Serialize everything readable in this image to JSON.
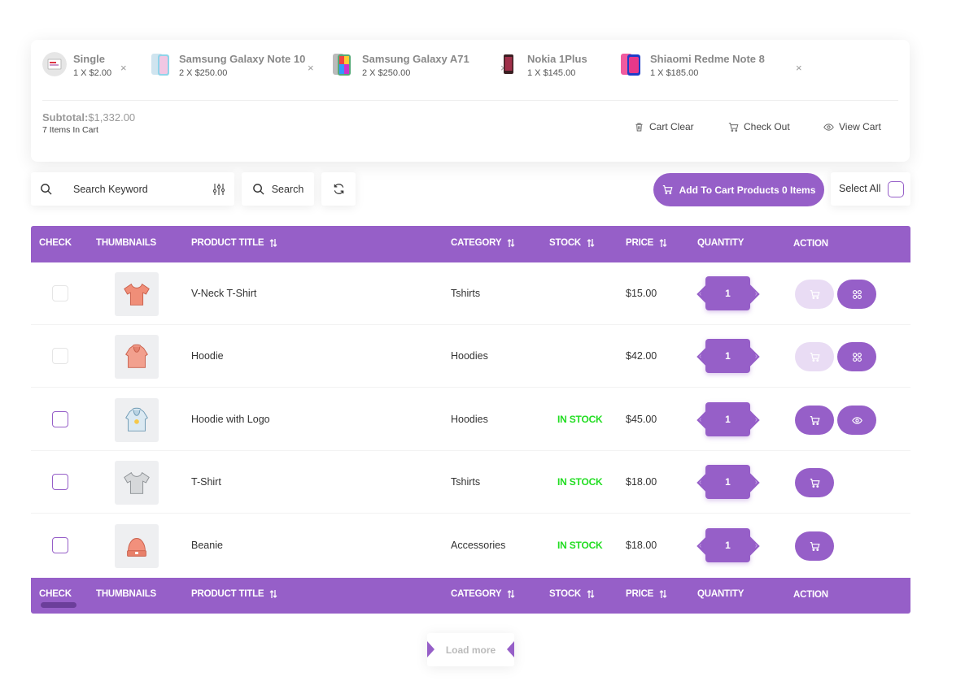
{
  "mini_cart": {
    "items": [
      {
        "name": "Single",
        "qty": "1 X $2.00",
        "thumb_icon": "single-product-thumb"
      },
      {
        "name": "Samsung Galaxy Note 10",
        "qty": "2 X $250.00",
        "thumb_icon": "phone-thumb-note10"
      },
      {
        "name": "Samsung Galaxy A71",
        "qty": "2 X $250.00",
        "thumb_icon": "phone-thumb-a71"
      },
      {
        "name": "Nokia 1Plus",
        "qty": "1 X $145.00",
        "thumb_icon": "phone-thumb-nokia"
      },
      {
        "name": "Shiaomi Redme Note 8",
        "qty": "1 X $185.00",
        "thumb_icon": "phone-thumb-redmi"
      }
    ],
    "remove_symbol": "×",
    "subtotal_label": "Subtotal:",
    "subtotal_value": "$1,332.00",
    "items_count": "7 Items In Cart",
    "actions": {
      "clear": "Cart Clear",
      "checkout": "Check Out",
      "view": "View Cart"
    }
  },
  "toolbar": {
    "search_placeholder": "Search Keyword",
    "search_button": "Search",
    "add_to_cart_button": "Add To Cart Products 0 Items",
    "select_all": "Select All"
  },
  "table": {
    "columns": [
      "CHECK",
      "THUMBNAILS",
      "PRODUCT TITLE",
      "CATEGORY",
      "STOCK",
      "PRICE",
      "QUANTITY",
      "ACTION"
    ],
    "rows": [
      {
        "title": "V-Neck T-Shirt",
        "category": "Tshirts",
        "stock": "",
        "price": "$15.00",
        "qty": "1",
        "thumb_icon": "tshirt-icon"
      },
      {
        "title": "Hoodie",
        "category": "Hoodies",
        "stock": "",
        "price": "$42.00",
        "qty": "1",
        "thumb_icon": "hoodie-icon"
      },
      {
        "title": "Hoodie with Logo",
        "category": "Hoodies",
        "stock": "IN STOCK",
        "price": "$45.00",
        "qty": "1",
        "thumb_icon": "hoodie-logo-icon"
      },
      {
        "title": "T-Shirt",
        "category": "Tshirts",
        "stock": "IN STOCK",
        "price": "$18.00",
        "qty": "1",
        "thumb_icon": "tshirt-icon"
      },
      {
        "title": "Beanie",
        "category": "Accessories",
        "stock": "IN STOCK",
        "price": "$18.00",
        "qty": "1",
        "thumb_icon": "beanie-icon"
      }
    ]
  },
  "load_more": "Load more",
  "colors": {
    "accent": "#965fc8",
    "accent_light": "#e9dcf4",
    "in_stock": "#22dd22"
  }
}
